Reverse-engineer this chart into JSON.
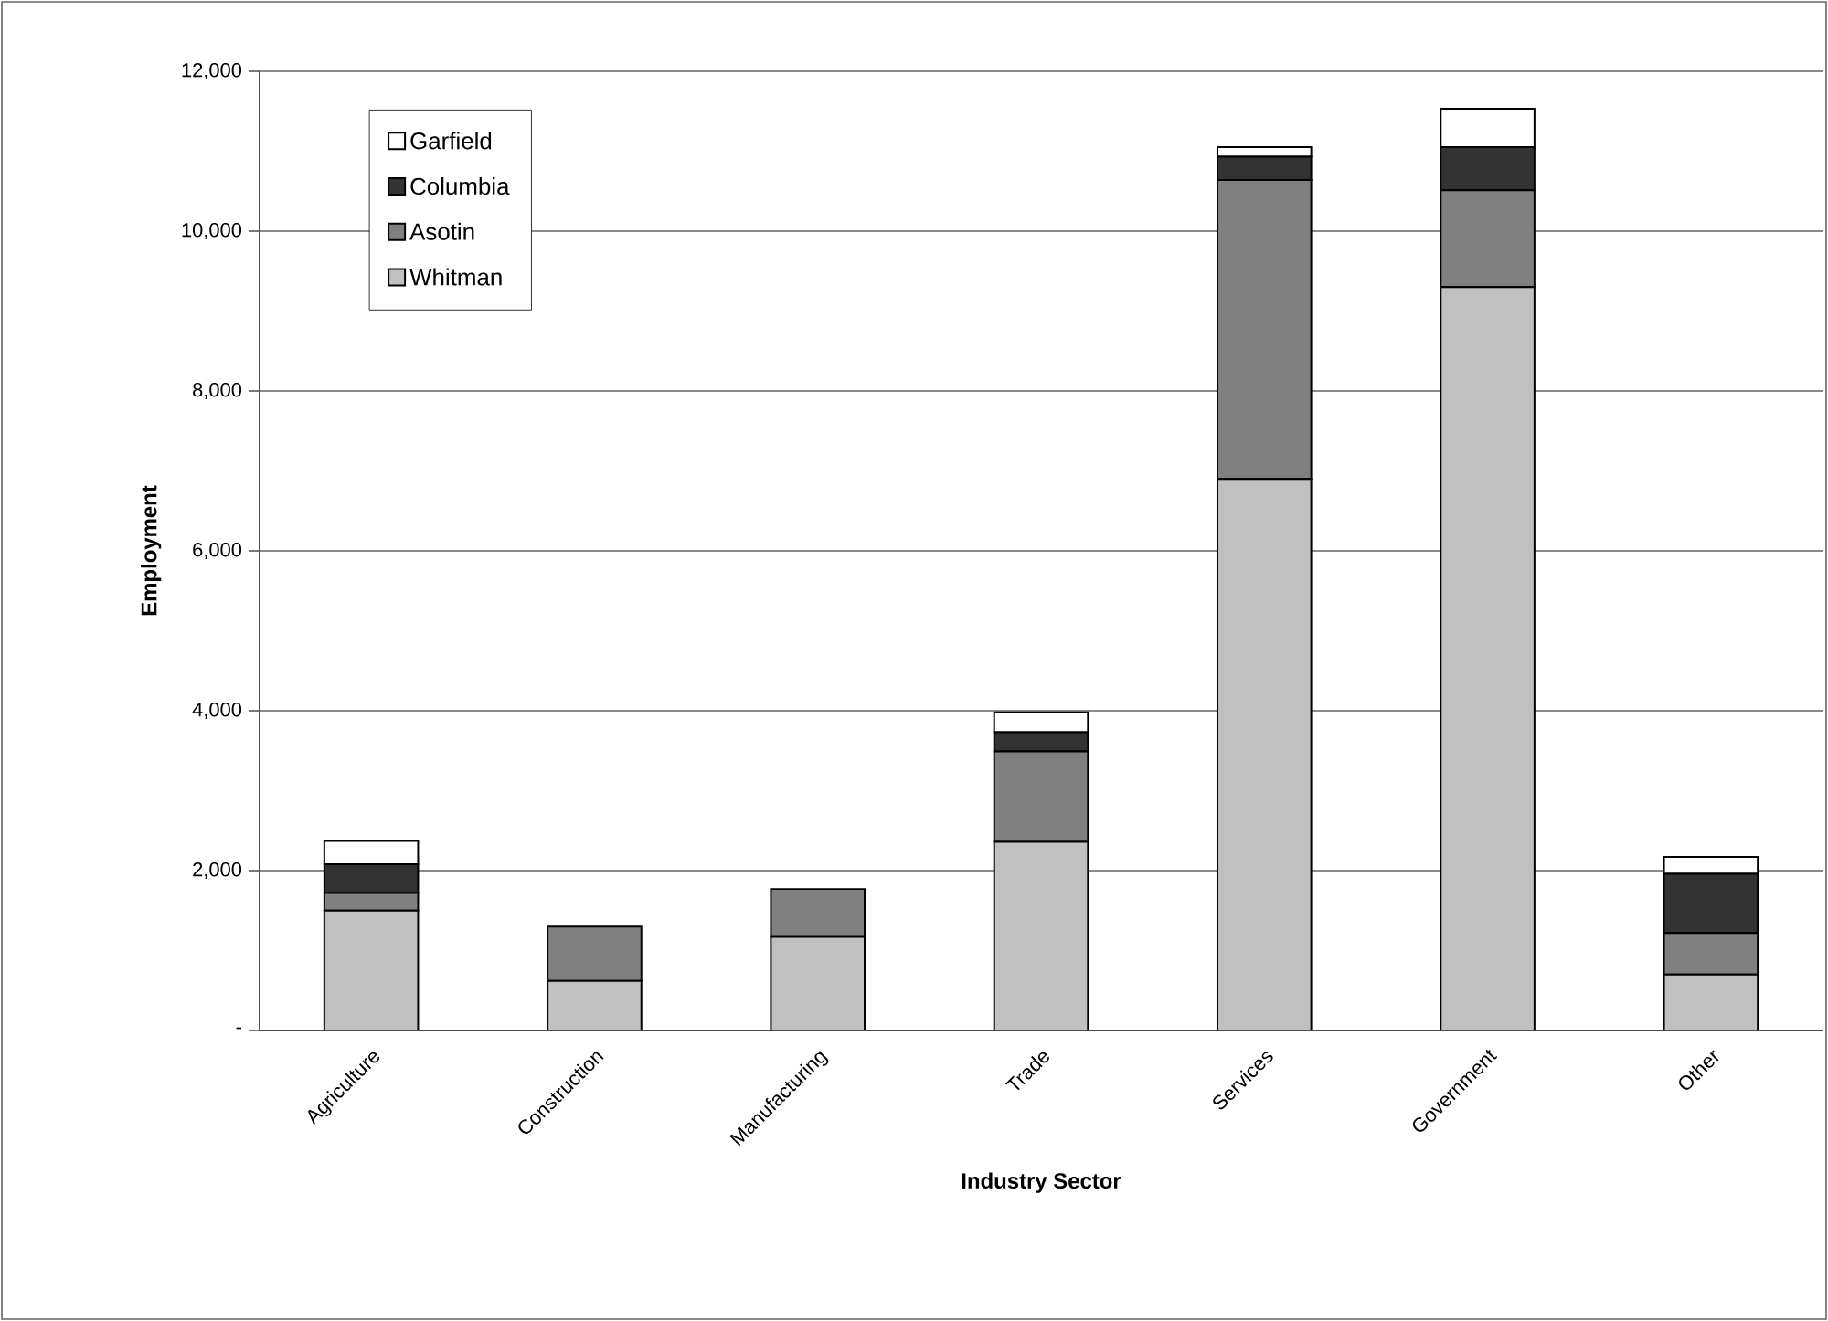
{
  "chart_data": {
    "type": "bar",
    "stacked": true,
    "xlabel": "Industry Sector",
    "ylabel": "Employment",
    "categories": [
      "Agriculture",
      "Construction",
      "Manufacturing",
      "Trade",
      "Services",
      "Government",
      "Other"
    ],
    "series": [
      {
        "name": "Whitman",
        "color": "#c0c0c0",
        "values": [
          1500,
          620,
          1170,
          2360,
          6900,
          9300,
          700
        ]
      },
      {
        "name": "Asotin",
        "color": "#808080",
        "values": [
          220,
          680,
          600,
          1130,
          3740,
          1210,
          520
        ]
      },
      {
        "name": "Columbia",
        "color": "#333333",
        "values": [
          360,
          null,
          null,
          240,
          290,
          540,
          740
        ]
      },
      {
        "name": "Garfield",
        "color": "#ffffff",
        "values": [
          290,
          null,
          null,
          250,
          120,
          480,
          210
        ]
      }
    ],
    "ylim": [
      0,
      12000
    ],
    "yticks": [
      {
        "value": 0,
        "label": "-"
      },
      {
        "value": 2000,
        "label": "2,000"
      },
      {
        "value": 4000,
        "label": "4,000"
      },
      {
        "value": 6000,
        "label": "6,000"
      },
      {
        "value": 8000,
        "label": "8,000"
      },
      {
        "value": 10000,
        "label": "10,000"
      },
      {
        "value": 12000,
        "label": "12,000"
      }
    ],
    "grid": "y",
    "legend": "top left"
  }
}
